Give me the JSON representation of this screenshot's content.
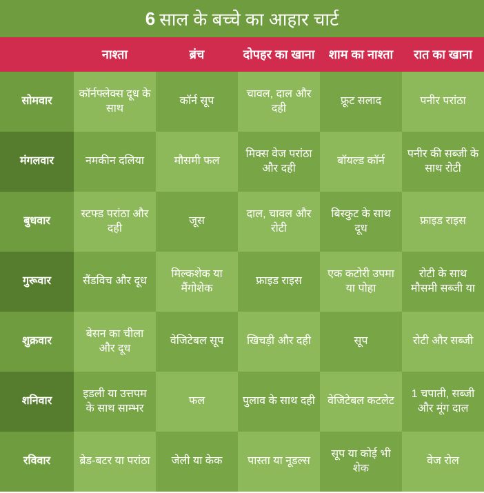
{
  "title_bold": "6",
  "title_rest": "साल के बच्चे का आहार चार्ट",
  "colors": {
    "title_bg": "#6f9c3e",
    "header_bg": "#d12c4e",
    "day_light": "#6f9c3e",
    "day_dark": "#567c2d",
    "cell_light": "#8eb95a",
    "cell_dark": "#78a546",
    "text": "#ffffff"
  },
  "columns": [
    "",
    "नाश्ता",
    "ब्रंच",
    "दोपहर का खाना",
    "शाम का नाश्ता",
    "रात का खाना"
  ],
  "days": [
    "सोमवार",
    "मंगलवार",
    "बुधवार",
    "गुरूवार",
    "शुक्रवार",
    "शनिवार",
    "रविवार"
  ],
  "rows": [
    [
      "कॉर्नफ्लेक्स दूध के साथ",
      "कॉर्न सूप",
      "चावल, दाल और दही",
      "फ्रूट सलाद",
      "पनीर परांठा"
    ],
    [
      "नमकीन दलिया",
      "मौसमी फल",
      "मिक्स वेज परांठा और दही",
      "बॉयल्ड कॉर्न",
      "पनीर की सब्जी के साथ रोटी"
    ],
    [
      "स्टफ्ड परांठा और दही",
      "जूस",
      "दाल, चावल और रोटी",
      "बिस्कुट के साथ दूध",
      "फ्राइड राइस"
    ],
    [
      "सैंडविच और दूध",
      "मिल्कशेक या मैंगोशेक",
      "फ्राइड राइस",
      "एक कटोरी उपमा या पोहा",
      "रोटी के साथ मौसमी सब्जी या"
    ],
    [
      "बेसन का चीला और दूध",
      "वेजिटेबल सूप",
      "खिचड़ी और दही",
      "सूप",
      "रोटी और सब्जी"
    ],
    [
      "इडली या उत्तपम के साथ साम्भर",
      "फल",
      "पुलाव के साथ दही",
      "वेजिटेबल कटलेट",
      "1 चपाती, सब्जी और मूंग दाल"
    ],
    [
      "ब्रेड-बटर या परांठा",
      "जेली या केक",
      "पास्ता या नूडल्स",
      "सूप या कोई भी शेक",
      "वेज रोल"
    ]
  ]
}
